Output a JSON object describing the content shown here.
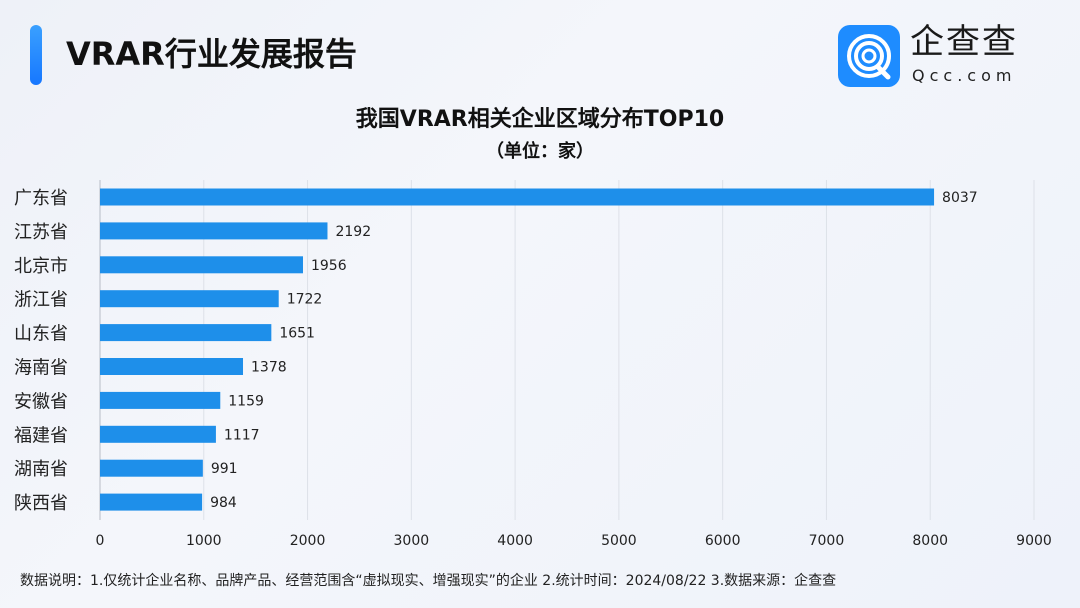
{
  "header": {
    "title": "VRAR行业发展报告"
  },
  "logo": {
    "name": "企查查",
    "url": "Qcc.com"
  },
  "chart_data": {
    "type": "bar",
    "orientation": "horizontal",
    "title": "我国VRAR相关企业区域分布TOP10",
    "subtitle": "（单位：家）",
    "categories": [
      "广东省",
      "江苏省",
      "北京市",
      "浙江省",
      "山东省",
      "海南省",
      "安徽省",
      "福建省",
      "湖南省",
      "陕西省"
    ],
    "values": [
      8037,
      2192,
      1956,
      1722,
      1651,
      1378,
      1159,
      1117,
      991,
      984
    ],
    "xlim": [
      0,
      9000
    ],
    "xticks": [
      "0",
      "1000",
      "2000",
      "3000",
      "4000",
      "5000",
      "6000",
      "7000",
      "8000",
      "9000"
    ],
    "grid": true,
    "bar_color": "#1e8fea",
    "data_labels": true
  },
  "footer": {
    "note": "数据说明：1.仅统计企业名称、品牌产品、经营范围含“虚拟现实、增强现实”的企业  2.统计时间：2024/08/22   3.数据来源：企查查"
  }
}
